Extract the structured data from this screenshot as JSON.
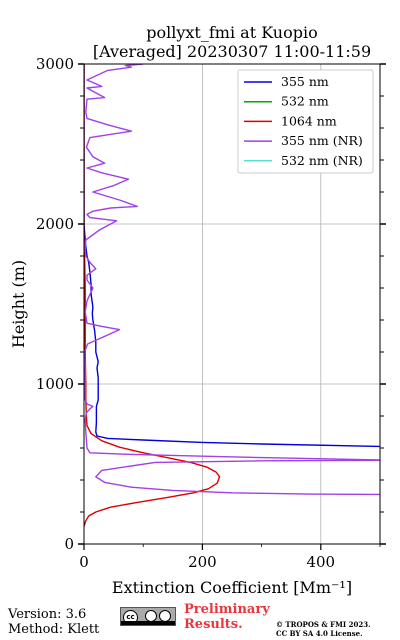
{
  "chart_data": {
    "type": "line",
    "title": "pollyxt_fmi at Kuopio",
    "subtitle": "[Averaged] 20230307 11:00-11:59",
    "xlabel": "Extinction Coefficient [Mm⁻¹]",
    "ylabel": "Height (m)",
    "xlim": [
      0,
      500
    ],
    "ylim": [
      0,
      3000
    ],
    "xticks": [
      "0",
      "200",
      "400"
    ],
    "yticks": [
      "0",
      "1000",
      "2000",
      "3000"
    ],
    "grid": true,
    "legend_position": "top-right",
    "series": [
      {
        "name": "355 nm",
        "color": "#0000dd",
        "points": [
          [
            500,
            610
          ],
          [
            300,
            625
          ],
          [
            200,
            635
          ],
          [
            100,
            650
          ],
          [
            40,
            660
          ],
          [
            22,
            675
          ],
          [
            20,
            700
          ],
          [
            21,
            760
          ],
          [
            21,
            820
          ],
          [
            21,
            860
          ],
          [
            24,
            900
          ],
          [
            24,
            960
          ],
          [
            24,
            1040
          ],
          [
            22,
            1100
          ],
          [
            24,
            1140
          ],
          [
            20,
            1200
          ],
          [
            20,
            1260
          ],
          [
            18,
            1330
          ],
          [
            15,
            1400
          ],
          [
            14,
            1440
          ],
          [
            15,
            1480
          ],
          [
            12,
            1560
          ],
          [
            12,
            1620
          ],
          [
            10,
            1700
          ],
          [
            8,
            1760
          ],
          [
            5,
            1800
          ],
          [
            4,
            1830
          ],
          [
            3,
            1860
          ],
          [
            2,
            1900
          ],
          [
            1,
            1950
          ],
          [
            0,
            2000
          ],
          [
            0,
            3000
          ]
        ]
      },
      {
        "name": "532 nm",
        "color": "#00aa00",
        "points": []
      },
      {
        "name": "1064 nm",
        "color": "#dd0000",
        "points": [
          [
            0,
            110
          ],
          [
            3,
            145
          ],
          [
            8,
            175
          ],
          [
            20,
            200
          ],
          [
            45,
            230
          ],
          [
            90,
            260
          ],
          [
            140,
            290
          ],
          [
            185,
            320
          ],
          [
            210,
            345
          ],
          [
            225,
            380
          ],
          [
            229,
            420
          ],
          [
            223,
            450
          ],
          [
            208,
            480
          ],
          [
            180,
            510
          ],
          [
            140,
            540
          ],
          [
            100,
            570
          ],
          [
            60,
            605
          ],
          [
            30,
            645
          ],
          [
            12,
            690
          ],
          [
            5,
            740
          ],
          [
            4,
            800
          ],
          [
            3,
            900
          ],
          [
            3,
            1000
          ],
          [
            2,
            1200
          ],
          [
            2,
            1400
          ],
          [
            2,
            1600
          ],
          [
            1,
            1800
          ],
          [
            1,
            1850
          ],
          [
            0,
            1900
          ],
          [
            0,
            3000
          ]
        ]
      },
      {
        "name": "355 nm (NR)",
        "color": "#a040e8",
        "points": [
          [
            500,
            310
          ],
          [
            380,
            312
          ],
          [
            250,
            320
          ],
          [
            150,
            335
          ],
          [
            80,
            355
          ],
          [
            35,
            385
          ],
          [
            20,
            420
          ],
          [
            30,
            460
          ],
          [
            120,
            510
          ],
          [
            300,
            520
          ],
          [
            500,
            523
          ],
          [
            520,
            524
          ],
          [
            300,
            540
          ],
          [
            80,
            560
          ],
          [
            10,
            570
          ],
          [
            5,
            600
          ],
          [
            3,
            700
          ],
          [
            2,
            780
          ],
          [
            4,
            820
          ],
          [
            10,
            845
          ],
          [
            15,
            860
          ],
          [
            5,
            875
          ],
          [
            2,
            900
          ],
          [
            2,
            1100
          ],
          [
            1,
            1200
          ],
          [
            6,
            1250
          ],
          [
            30,
            1290
          ],
          [
            60,
            1340
          ],
          [
            30,
            1360
          ],
          [
            5,
            1380
          ],
          [
            2,
            1450
          ],
          [
            5,
            1520
          ],
          [
            15,
            1600
          ],
          [
            5,
            1650
          ],
          [
            5,
            1680
          ],
          [
            20,
            1720
          ],
          [
            10,
            1760
          ],
          [
            3,
            1800
          ],
          [
            2,
            1850
          ],
          [
            3,
            1900
          ],
          [
            25,
            1960
          ],
          [
            55,
            2020
          ],
          [
            10,
            2040
          ],
          [
            5,
            2060
          ],
          [
            15,
            2080
          ],
          [
            45,
            2100
          ],
          [
            90,
            2110
          ],
          [
            60,
            2150
          ],
          [
            15,
            2200
          ],
          [
            50,
            2240
          ],
          [
            75,
            2280
          ],
          [
            30,
            2320
          ],
          [
            5,
            2350
          ],
          [
            35,
            2380
          ],
          [
            15,
            2420
          ],
          [
            4,
            2480
          ],
          [
            10,
            2540
          ],
          [
            80,
            2580
          ],
          [
            40,
            2620
          ],
          [
            5,
            2660
          ],
          [
            3,
            2700
          ],
          [
            5,
            2780
          ],
          [
            35,
            2790
          ],
          [
            15,
            2830
          ],
          [
            5,
            2850
          ],
          [
            30,
            2860
          ],
          [
            5,
            2900
          ],
          [
            40,
            2960
          ],
          [
            80,
            2980
          ],
          [
            70,
            2990
          ],
          [
            100,
            3000
          ]
        ]
      },
      {
        "name": "532 nm (NR)",
        "color": "#55e0d0",
        "points": []
      }
    ]
  },
  "footer": {
    "version": "Version: 3.6",
    "method": "Method: Klett",
    "badge_text": "cc",
    "preliminary_1": "Preliminary",
    "preliminary_2": "Results.",
    "copyright_1": "© TROPOS & FMI 2023.",
    "copyright_2": "CC BY SA 4.0 License."
  }
}
